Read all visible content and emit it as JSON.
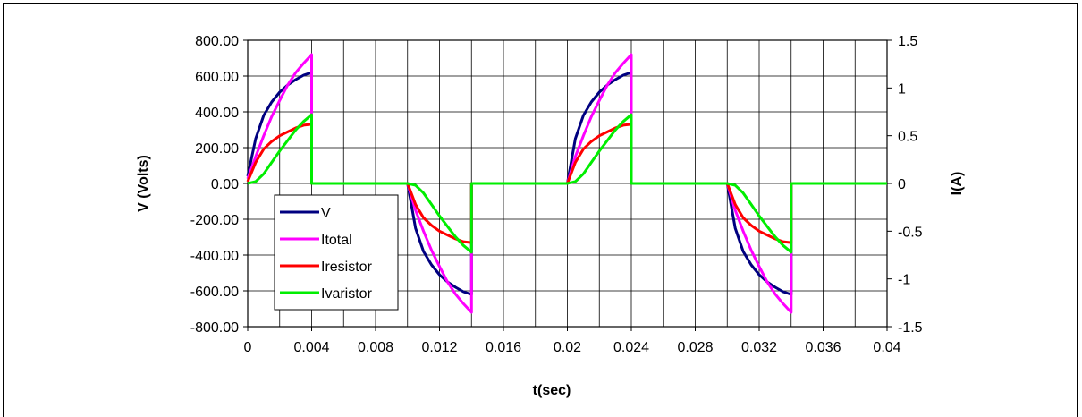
{
  "chart_data": {
    "type": "line",
    "title": "",
    "xlabel": "t(sec)",
    "ylabel": "V (Volts)",
    "y2label": "I(A)",
    "xlim": [
      0,
      0.04
    ],
    "ylim": [
      -800,
      800
    ],
    "y2lim": [
      -1.5,
      1.5
    ],
    "x_ticks": [
      "0",
      "0.004",
      "0.008",
      "0.012",
      "0.016",
      "0.02",
      "0.024",
      "0.028",
      "0.032",
      "0.036",
      "0.04"
    ],
    "y_ticks": [
      "800.00",
      "600.00",
      "400.00",
      "200.00",
      "0.00",
      "-200.00",
      "-400.00",
      "-600.00",
      "-800.00"
    ],
    "y2_ticks": [
      "1.5",
      "1",
      "0.5",
      "0",
      "-0.5",
      "-1",
      "-1.5"
    ],
    "grid": true,
    "legend_position": "lower-left",
    "series": [
      {
        "name": "V",
        "color": "#000080",
        "axis": "left",
        "x": [
          0,
          0.0005,
          0.001,
          0.0015,
          0.002,
          0.0025,
          0.003,
          0.0035,
          0.004,
          0.004,
          0.01,
          0.0105,
          0.011,
          0.0115,
          0.012,
          0.0125,
          0.013,
          0.0135,
          0.014,
          0.014,
          0.02,
          0.0205,
          0.021,
          0.0215,
          0.022,
          0.0225,
          0.023,
          0.0235,
          0.024,
          0.024,
          0.03,
          0.0305,
          0.031,
          0.0315,
          0.032,
          0.0325,
          0.033,
          0.0335,
          0.034,
          0.034,
          0.04
        ],
        "y": [
          40,
          250,
          380,
          455,
          510,
          550,
          580,
          605,
          620,
          0,
          0,
          -250,
          -380,
          -455,
          -510,
          -550,
          -580,
          -605,
          -620,
          0,
          0,
          250,
          380,
          455,
          510,
          550,
          580,
          605,
          620,
          0,
          0,
          -250,
          -380,
          -455,
          -510,
          -550,
          -580,
          -605,
          -620,
          0,
          0
        ]
      },
      {
        "name": "Itotal",
        "color": "#ff00ff",
        "axis": "right",
        "x": [
          0,
          0.0005,
          0.001,
          0.0015,
          0.002,
          0.0025,
          0.003,
          0.0035,
          0.004,
          0.004,
          0.01,
          0.0105,
          0.011,
          0.0115,
          0.012,
          0.0125,
          0.013,
          0.0135,
          0.014,
          0.014,
          0.02,
          0.0205,
          0.021,
          0.0215,
          0.022,
          0.0225,
          0.023,
          0.0235,
          0.024,
          0.024,
          0.03,
          0.0305,
          0.031,
          0.0315,
          0.032,
          0.0325,
          0.033,
          0.0335,
          0.034,
          0.034,
          0.04
        ],
        "y": [
          0.05,
          0.28,
          0.5,
          0.7,
          0.87,
          1.03,
          1.16,
          1.26,
          1.35,
          0,
          0,
          -0.28,
          -0.5,
          -0.7,
          -0.87,
          -1.03,
          -1.16,
          -1.26,
          -1.35,
          0,
          0,
          0.28,
          0.5,
          0.7,
          0.87,
          1.03,
          1.16,
          1.26,
          1.35,
          0,
          0,
          -0.28,
          -0.5,
          -0.7,
          -0.87,
          -1.03,
          -1.16,
          -1.26,
          -1.35,
          0,
          0
        ]
      },
      {
        "name": "Iresistor",
        "color": "#ff0000",
        "axis": "right",
        "x": [
          0,
          0.0005,
          0.001,
          0.0015,
          0.002,
          0.0025,
          0.003,
          0.0035,
          0.004,
          0.004,
          0.01,
          0.0105,
          0.011,
          0.0115,
          0.012,
          0.0125,
          0.013,
          0.0135,
          0.014,
          0.014,
          0.02,
          0.0205,
          0.021,
          0.0215,
          0.022,
          0.0225,
          0.023,
          0.0235,
          0.024,
          0.024,
          0.03,
          0.0305,
          0.031,
          0.0315,
          0.032,
          0.0325,
          0.033,
          0.0335,
          0.034,
          0.034,
          0.04
        ],
        "y": [
          0.02,
          0.22,
          0.36,
          0.44,
          0.5,
          0.54,
          0.58,
          0.61,
          0.62,
          0,
          0,
          -0.22,
          -0.36,
          -0.44,
          -0.5,
          -0.54,
          -0.58,
          -0.61,
          -0.62,
          0,
          0,
          0.22,
          0.36,
          0.44,
          0.5,
          0.54,
          0.58,
          0.61,
          0.62,
          0,
          0,
          -0.22,
          -0.36,
          -0.44,
          -0.5,
          -0.54,
          -0.58,
          -0.61,
          -0.62,
          0,
          0
        ]
      },
      {
        "name": "Ivaristor",
        "color": "#00ee00",
        "axis": "right",
        "x": [
          0,
          0.0005,
          0.001,
          0.0015,
          0.002,
          0.0025,
          0.003,
          0.0035,
          0.004,
          0.004,
          0.01,
          0.0105,
          0.011,
          0.0115,
          0.012,
          0.0125,
          0.013,
          0.0135,
          0.014,
          0.014,
          0.02,
          0.0205,
          0.021,
          0.0215,
          0.022,
          0.0225,
          0.023,
          0.0235,
          0.024,
          0.024,
          0.03,
          0.0305,
          0.031,
          0.0315,
          0.032,
          0.0325,
          0.033,
          0.0335,
          0.034,
          0.034,
          0.04
        ],
        "y": [
          0,
          0.02,
          0.1,
          0.22,
          0.34,
          0.45,
          0.56,
          0.65,
          0.72,
          0,
          0,
          -0.02,
          -0.1,
          -0.22,
          -0.34,
          -0.45,
          -0.56,
          -0.65,
          -0.72,
          0,
          0,
          0.02,
          0.1,
          0.22,
          0.34,
          0.45,
          0.56,
          0.65,
          0.72,
          0,
          0,
          -0.02,
          -0.1,
          -0.22,
          -0.34,
          -0.45,
          -0.56,
          -0.65,
          -0.72,
          0,
          0
        ]
      }
    ]
  }
}
